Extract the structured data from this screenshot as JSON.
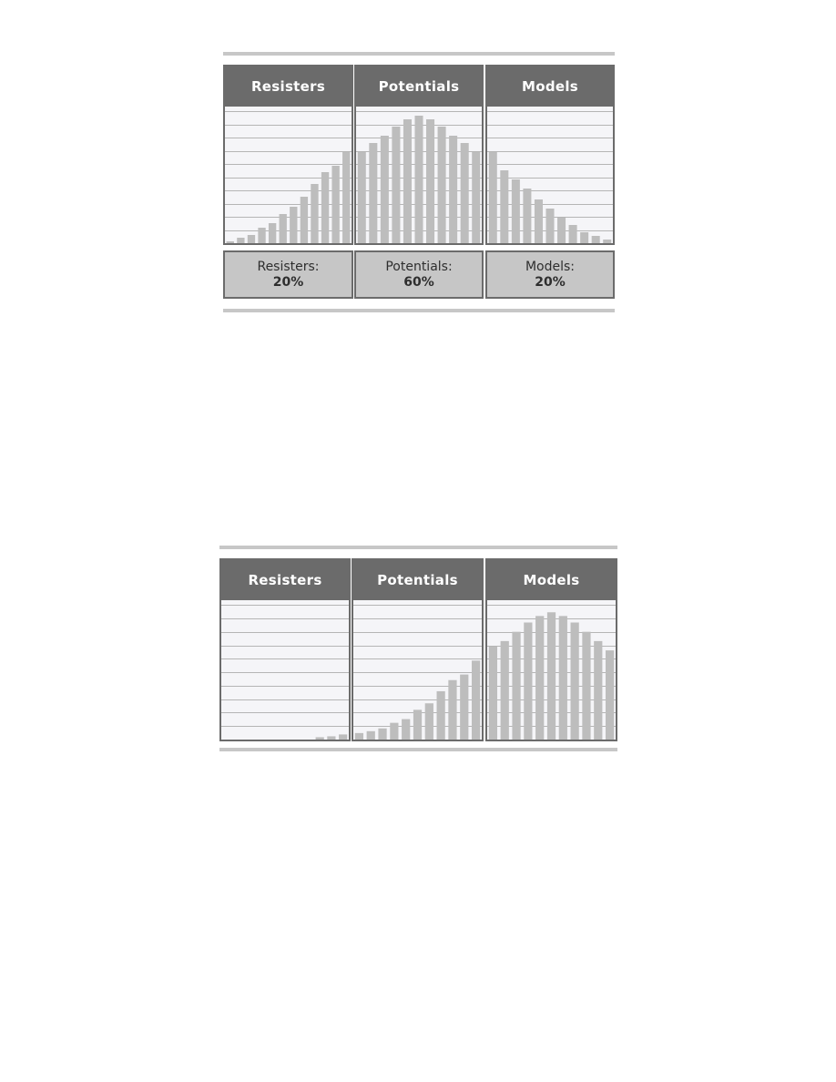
{
  "colors": {
    "header": "#6b6b6b",
    "border": "#6b6b6b",
    "bar": "#bdbdbd",
    "grid": "#b5b5b5",
    "plot_bg": "#f5f5f8",
    "summary_bg": "#c6c6c6",
    "rule": "#c7c7c7"
  },
  "chart_data": [
    {
      "type": "bar",
      "title": "",
      "xlabel": "",
      "ylabel": "",
      "ylim": [
        0,
        15
      ],
      "grid": true,
      "segments": [
        {
          "label": "Resisters",
          "values": [
            0.2,
            0.6,
            0.9,
            1.7,
            2.2,
            3.2,
            4.0,
            5.1,
            6.5,
            7.8,
            8.5,
            10.0
          ]
        },
        {
          "label": "Potentials",
          "values": [
            10.0,
            11.0,
            11.8,
            12.8,
            13.6,
            14.0,
            13.6,
            12.8,
            11.8,
            11.0,
            10.0
          ]
        },
        {
          "label": "Models",
          "values": [
            10.0,
            8.0,
            7.0,
            6.0,
            4.8,
            3.8,
            2.8,
            2.0,
            1.2,
            0.8,
            0.4
          ]
        }
      ],
      "summaries": [
        {
          "label": "Resisters:",
          "value": "20%"
        },
        {
          "label": "Potentials:",
          "value": "60%"
        },
        {
          "label": "Models:",
          "value": "20%"
        }
      ]
    },
    {
      "type": "bar",
      "title": "",
      "xlabel": "",
      "ylabel": "",
      "ylim": [
        0,
        15
      ],
      "grid": true,
      "segments": [
        {
          "label": "Resisters",
          "values": [
            0,
            0,
            0,
            0,
            0,
            0,
            0,
            0,
            0.25,
            0.35,
            0.55
          ]
        },
        {
          "label": "Potentials",
          "values": [
            0.7,
            0.9,
            1.2,
            1.8,
            2.2,
            3.2,
            3.9,
            5.2,
            6.4,
            7.0,
            8.5
          ]
        },
        {
          "label": "Models",
          "values": [
            10.0,
            10.6,
            11.6,
            12.6,
            13.3,
            13.7,
            13.3,
            12.6,
            11.6,
            10.6,
            9.6
          ]
        }
      ]
    }
  ]
}
